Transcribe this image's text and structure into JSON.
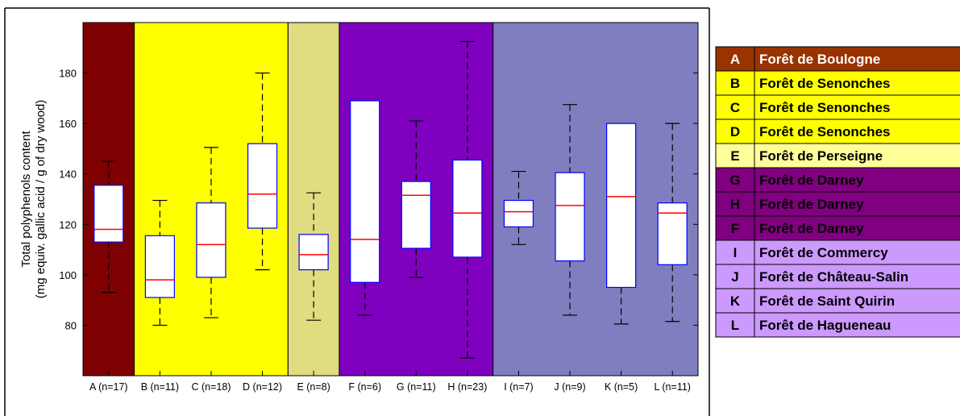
{
  "chart_data": {
    "type": "box",
    "title": "",
    "xlabel": "",
    "ylabel": [
      "Total polyphenols content",
      "(mg equiv. gallic acid / g of dry wood)"
    ],
    "ylim": [
      60,
      200
    ],
    "yticks": [
      80,
      100,
      120,
      140,
      160,
      180
    ],
    "grid": false,
    "legend_position": "right",
    "categories": [
      "A (n=17)",
      "B (n=11)",
      "C (n=18)",
      "D (n=12)",
      "E (n=8)",
      "F (n=6)",
      "G (n=11)",
      "H (n=23)",
      "I (n=7)",
      "J (n=9)",
      "K (n=5)",
      "L (n=11)"
    ],
    "boxes": [
      {
        "whisker_low": 93,
        "q1": 113,
        "median": 118,
        "q3": 135.5,
        "whisker_high": 145
      },
      {
        "whisker_low": 80,
        "q1": 91,
        "median": 98,
        "q3": 115.5,
        "whisker_high": 129.5
      },
      {
        "whisker_low": 83,
        "q1": 99,
        "median": 112,
        "q3": 128.5,
        "whisker_high": 150.5
      },
      {
        "whisker_low": 102,
        "q1": 118.5,
        "median": 132,
        "q3": 152,
        "whisker_high": 180
      },
      {
        "whisker_low": 82,
        "q1": 102,
        "median": 108,
        "q3": 116,
        "whisker_high": 132.5
      },
      {
        "whisker_low": 84,
        "q1": 97,
        "median": 114,
        "q3": 169,
        "whisker_high": 169
      },
      {
        "whisker_low": 99,
        "q1": 110.5,
        "median": 131.5,
        "q3": 137,
        "whisker_high": 161
      },
      {
        "whisker_low": 67,
        "q1": 107,
        "median": 124.5,
        "q3": 145.5,
        "whisker_high": 192.5
      },
      {
        "whisker_low": 112,
        "q1": 119,
        "median": 125,
        "q3": 129.5,
        "whisker_high": 141
      },
      {
        "whisker_low": 84,
        "q1": 105.5,
        "median": 127.5,
        "q3": 140.5,
        "whisker_high": 167.5
      },
      {
        "whisker_low": 80.5,
        "q1": 95,
        "median": 131,
        "q3": 160,
        "whisker_high": 160
      },
      {
        "whisker_low": 81.5,
        "q1": 104,
        "median": 124.5,
        "q3": 128.5,
        "whisker_high": 160
      }
    ],
    "background_bands": [
      {
        "from": 0,
        "to": 1,
        "color": "#7f0000"
      },
      {
        "from": 1,
        "to": 4,
        "color": "#ffff00"
      },
      {
        "from": 4,
        "to": 5,
        "color": "#e0dc80"
      },
      {
        "from": 5,
        "to": 8,
        "color": "#7f00bf"
      },
      {
        "from": 8,
        "to": 12,
        "color": "#7f7fbf"
      }
    ],
    "colors": {
      "box_edge": "#0000ff",
      "median": "#ff0000",
      "whisker": "#000000",
      "box_fill": "#ffffff"
    }
  },
  "legend": {
    "entries": [
      {
        "code": "A",
        "name": "Forêt de Boulogne",
        "color": "#993300",
        "text_color": "#ffffff"
      },
      {
        "code": "B",
        "name": "Forêt de Senonches",
        "color": "#ffff00",
        "text_color": "#000000"
      },
      {
        "code": "C",
        "name": "Forêt de Senonches",
        "color": "#ffff00",
        "text_color": "#000000"
      },
      {
        "code": "D",
        "name": "Forêt de Senonches",
        "color": "#ffff00",
        "text_color": "#000000"
      },
      {
        "code": "E",
        "name": "Forêt de Perseigne",
        "color": "#ffff99",
        "text_color": "#000000"
      },
      {
        "code": "G",
        "name": "Forêt de Darney",
        "color": "#800080",
        "text_color": "#000000"
      },
      {
        "code": "H",
        "name": "Forêt de Darney",
        "color": "#800080",
        "text_color": "#000000"
      },
      {
        "code": "F",
        "name": "Forêt de Darney",
        "color": "#800080",
        "text_color": "#000000"
      },
      {
        "code": "I",
        "name": "Forêt de Commercy",
        "color": "#cc99ff",
        "text_color": "#000000"
      },
      {
        "code": "J",
        "name": "Forêt de Château-Salin",
        "color": "#cc99ff",
        "text_color": "#000000"
      },
      {
        "code": "K",
        "name": "Forêt de Saint Quirin",
        "color": "#cc99ff",
        "text_color": "#000000"
      },
      {
        "code": "L",
        "name": "Forêt de Hagueneau",
        "color": "#cc99ff",
        "text_color": "#000000"
      }
    ]
  }
}
